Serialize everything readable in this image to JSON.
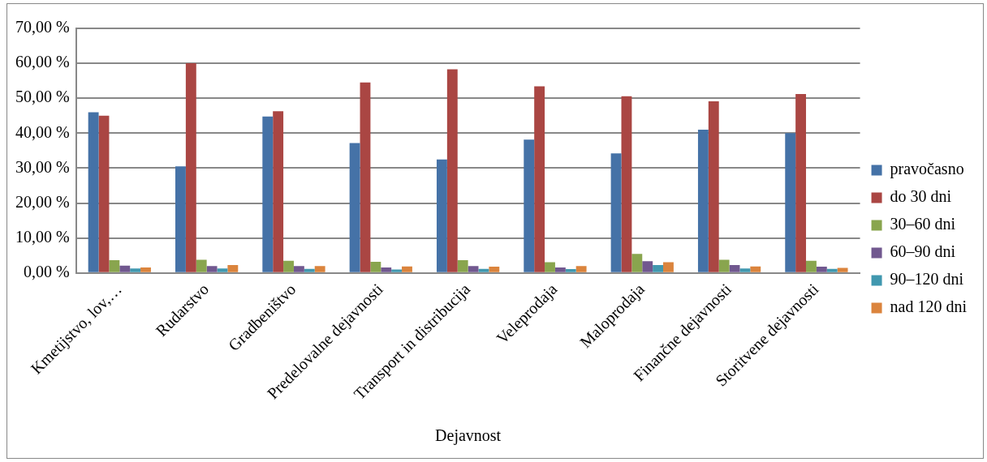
{
  "chart_data": {
    "type": "bar",
    "xlabel": "Dejavnost",
    "categories": [
      "Kmetijstvo, lov,…",
      "Rudarstvo",
      "Gradbeništvo",
      "Predelovalne dejavnosti",
      "Transport in distribucija",
      "Veleprodaja",
      "Maloprodaja",
      "Finančne dejavnosti",
      "Storitvene dejavnosti"
    ],
    "series": [
      {
        "name": "pravočasno",
        "color": "#4572a7",
        "values": [
          46,
          30.5,
          44.8,
          37.2,
          32.5,
          38.2,
          34.2,
          41,
          40
        ]
      },
      {
        "name": "do 30 dni",
        "color": "#aa4643",
        "values": [
          45,
          60,
          46.3,
          54.5,
          58.3,
          53.4,
          50.6,
          49.1,
          51.2
        ]
      },
      {
        "name": "30–60 dni",
        "color": "#89a54e",
        "values": [
          3.7,
          3.8,
          3.5,
          3.2,
          3.7,
          3.1,
          5.5,
          3.8,
          3.5
        ]
      },
      {
        "name": "60–90 dni",
        "color": "#71588f",
        "values": [
          2.1,
          2,
          2,
          1.6,
          2,
          1.6,
          3.4,
          2.3,
          1.8
        ]
      },
      {
        "name": "90–120 dni",
        "color": "#4198af",
        "values": [
          1.3,
          1.3,
          1.2,
          1,
          1.2,
          1.1,
          2.3,
          1.3,
          1.2
        ]
      },
      {
        "name": "nad 120 dni",
        "color": "#db843d",
        "values": [
          1.6,
          2.3,
          2,
          1.9,
          1.8,
          2,
          3.1,
          1.9,
          1.5
        ]
      }
    ],
    "ylim": [
      0,
      70
    ],
    "yticks": [
      {
        "value": 0,
        "label": "0,00 %"
      },
      {
        "value": 10,
        "label": "10,00 %"
      },
      {
        "value": 20,
        "label": "20,00 %"
      },
      {
        "value": 30,
        "label": "30,00 %"
      },
      {
        "value": 40,
        "label": "40,00 %"
      },
      {
        "value": 50,
        "label": "50,00 %"
      },
      {
        "value": 60,
        "label": "60,00 %"
      },
      {
        "value": 70,
        "label": "70,00 %"
      }
    ],
    "grid": "y",
    "legend": "right"
  }
}
